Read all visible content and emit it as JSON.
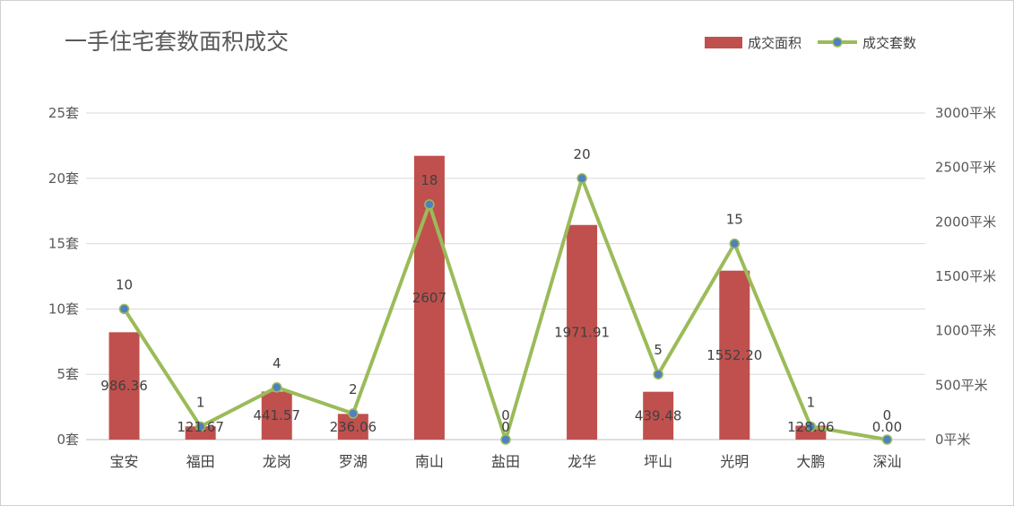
{
  "chart_data": {
    "type": "bar",
    "title": "一手住宅套数面积成交",
    "categories": [
      "宝安",
      "福田",
      "龙岗",
      "罗湖",
      "南山",
      "盐田",
      "龙华",
      "坪山",
      "光明",
      "大鹏",
      "深汕"
    ],
    "series": [
      {
        "name": "成交面积",
        "type": "bar",
        "axis": "right",
        "values": [
          986.36,
          121.67,
          441.57,
          236.06,
          2607,
          0,
          1971.91,
          439.48,
          1552.2,
          128.06,
          0.0
        ],
        "labels": [
          "986.36",
          "121.67",
          "441.57",
          "236.06",
          "2607",
          "0",
          "1971.91",
          "439.48",
          "1552.20",
          "128.06",
          "0.00"
        ],
        "color": "#c0504d"
      },
      {
        "name": "成交套数",
        "type": "line",
        "axis": "left",
        "values": [
          10,
          1,
          4,
          2,
          18,
          0,
          20,
          5,
          15,
          1,
          0
        ],
        "labels": [
          "10",
          "1",
          "4",
          "2",
          "18",
          "0",
          "20",
          "5",
          "15",
          "1",
          "0"
        ],
        "color": "#9bbb59",
        "marker_color": "#4f81bd"
      }
    ],
    "y_left": {
      "ylim": [
        0,
        25
      ],
      "ticks": [
        0,
        5,
        10,
        15,
        20,
        25
      ],
      "tick_labels": [
        "0套",
        "5套",
        "10套",
        "15套",
        "20套",
        "25套"
      ]
    },
    "y_right": {
      "ylim": [
        0,
        3000
      ],
      "ticks": [
        0,
        500,
        1000,
        1500,
        2000,
        2500,
        3000
      ],
      "tick_labels": [
        "0平米",
        "500平米",
        "1000平米",
        "1500平米",
        "2000平米",
        "2500平米",
        "3000平米"
      ]
    },
    "grid": true,
    "legend_position": "top-right"
  }
}
